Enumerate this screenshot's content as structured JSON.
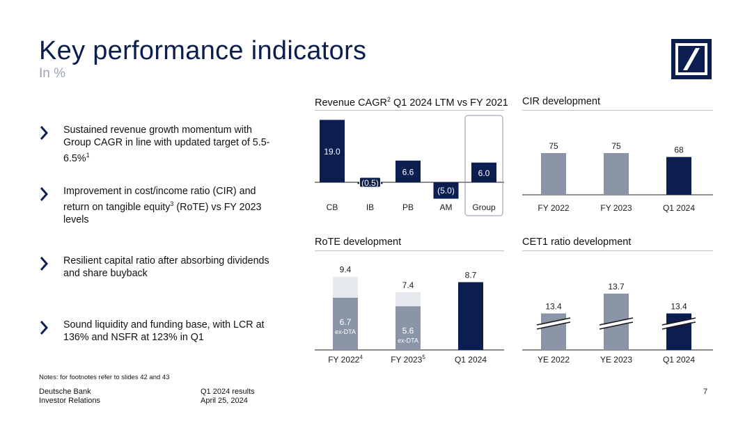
{
  "title": "Key performance indicators",
  "subtitle": "In %",
  "bullets": [
    {
      "text": "Sustained revenue growth momentum with Group CAGR in line with updated target of 5.5-6.5%",
      "sup": "1"
    },
    {
      "text": "Improvement in cost/income ratio (CIR) and return on tangible equity",
      "sup": "3",
      "text2": " (RoTE) vs FY 2023 levels"
    },
    {
      "text": "Resilient capital ratio after absorbing dividends and share buyback"
    },
    {
      "text": "Sound liquidity and funding base, with LCR at 136% and NSFR at 123% in Q1"
    }
  ],
  "notes": "Notes: for footnotes refer to slides 42 and 43",
  "footer": {
    "company": "Deutsche Bank",
    "department": "Investor Relations",
    "report": "Q1 2024 results",
    "date": "April 25, 2024",
    "page": "7"
  },
  "colors": {
    "navy": "#0b1e4f",
    "grey": "#8a96a7",
    "light": "#e6e9ee",
    "accent": "#0b1e4f"
  },
  "chart_data": [
    {
      "type": "bar",
      "title": "Revenue CAGR",
      "title_sup": "2",
      "title_rest": " Q1 2024 LTM vs FY 2021",
      "categories": [
        "CB",
        "IB",
        "PB",
        "AM",
        "Group"
      ],
      "values": [
        19.0,
        -0.5,
        6.6,
        -5.0,
        6.0
      ],
      "labels": [
        "19.0",
        "(0.5)",
        "6.6",
        "(5.0)",
        "6.0"
      ],
      "highlight": "Group"
    },
    {
      "type": "bar",
      "title": "CIR development",
      "categories": [
        "FY 2022",
        "FY 2023",
        "Q1 2024"
      ],
      "values": [
        75,
        75,
        68
      ],
      "labels": [
        "75",
        "75",
        "68"
      ]
    },
    {
      "type": "bar",
      "title": "RoTE development",
      "categories": [
        "FY 2022",
        "FY 2023",
        "Q1 2024"
      ],
      "category_sups": [
        "4",
        "5",
        ""
      ],
      "values": [
        9.4,
        7.4,
        8.7
      ],
      "labels": [
        "9.4",
        "7.4",
        "8.7"
      ],
      "ex_dta_values": [
        6.7,
        5.6,
        null
      ],
      "ex_dta_labels": [
        "6.7",
        "5.6",
        null
      ],
      "ex_dta_caption": "ex-DTA"
    },
    {
      "type": "bar",
      "title": "CET1 ratio development",
      "categories": [
        "YE 2022",
        "YE 2023",
        "Q1 2024"
      ],
      "values": [
        13.4,
        13.7,
        13.4
      ],
      "labels": [
        "13.4",
        "13.7",
        "13.4"
      ],
      "axis_break": true
    }
  ]
}
